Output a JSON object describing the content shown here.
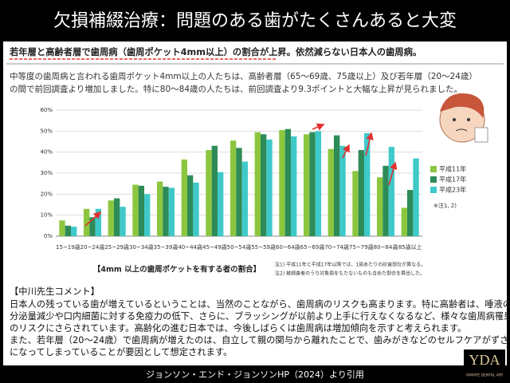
{
  "slide_title": "欠損補綴治療：問題のある歯がたくさんあると大変",
  "headline": {
    "emphasis": "若年層と高齢者層で歯周病（歯周ポケット4mm以上）の割合が上昇。",
    "rest": "依然減らない日本人の歯周病。"
  },
  "intro_lines": [
    "中等度の歯周病と言われる歯周ポケット4mm以上の人たちは、高齢者層（65～69歳、75歳以上）及び若年層（20～24歳）",
    "の間で前回調査より増加しました。特に80～84歳の人たちは、前回調査より9.3ポイントと大幅な上昇が見られました。"
  ],
  "chart_data": {
    "type": "bar",
    "x_label": "【4mm 以上の歯周ポケットを有する者の割合】",
    "notes": [
      "注1) 平成11年と平成17年以降では、1歯あたりの診査部位が異なる。",
      "注2) 被調査者のうち対象歯をもたないものも含めた割合を算出した。"
    ],
    "legend_note": "※注1, 2)",
    "categories": [
      "15~19歳",
      "20~24歳",
      "25~29歳",
      "30~34歳",
      "35~39歳",
      "40~44歳",
      "45~49歳",
      "50~54歳",
      "55~59歳",
      "60~64歳",
      "65~69歳",
      "70~74歳",
      "75~79歳",
      "80~84歳",
      "85歳以上"
    ],
    "series": [
      {
        "name": "平成11年",
        "color": "#8cc63f",
        "values": [
          7.5,
          13,
          17,
          24.5,
          26,
          36.5,
          41,
          45.5,
          49.5,
          50.5,
          48.5,
          41.5,
          31,
          28,
          13.5
        ]
      },
      {
        "name": "平成17年",
        "color": "#2e8b57",
        "values": [
          5,
          9,
          18,
          24,
          23.5,
          29,
          43,
          42,
          48.5,
          51,
          49.5,
          48,
          41,
          33.5,
          22
        ]
      },
      {
        "name": "平成23年",
        "color": "#3fc9c9",
        "values": [
          4.5,
          13,
          14,
          20,
          23,
          25.5,
          30.5,
          35.5,
          46,
          47.5,
          50,
          43,
          49,
          42.5,
          37
        ]
      }
    ],
    "ylim": [
      0,
      60
    ],
    "yticks": [
      {
        "value": 0,
        "label": "0%"
      },
      {
        "value": 10,
        "label": "10%"
      },
      {
        "value": 20,
        "label": "20%"
      },
      {
        "value": 30,
        "label": "30%"
      },
      {
        "value": 40,
        "label": "40%"
      },
      {
        "value": 50,
        "label": "50%"
      },
      {
        "value": 60,
        "label": "60%"
      }
    ],
    "grid": true
  },
  "comment": {
    "heading": "【中川先生コメント】",
    "lines": [
      "日本人の残っている歯が増えているということは、当然のことながら、歯周病のリスクも高まります。特に高齢者は、唾液の",
      "分泌量減少や口内細菌に対する免疫力の低下、さらに、ブラッシングが以前より上手に行えなくなるなど、様々な歯周病罹患",
      "のリスクにさらされています。高齢化の進む日本では、今後しばらくは歯周病は増加傾向を示すと考えられます。",
      "また、若年層（20～24歳）で歯周病が増えたのは、自立して親の関与から離れたことで、歯みがきなどのセルフケアがずさん",
      "になってしまっていることが要因として想定されます。"
    ]
  },
  "footer": "ジョンソン・エンド・ジョンソンHP（2024）より引用",
  "logo": {
    "mark": "YDA",
    "text": "YAMATE DENTAL ART"
  }
}
